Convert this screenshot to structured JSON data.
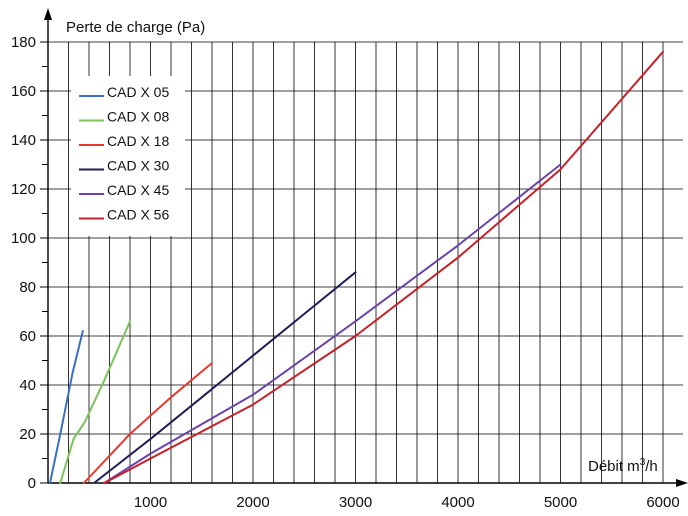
{
  "chart_data": {
    "type": "line",
    "ylabel": "Perte de charge (Pa)",
    "xlabel_prefix": "Débit m",
    "xlabel_sup": "3",
    "xlabel_suffix": "/h",
    "xlim": [
      0,
      6000
    ],
    "ylim": [
      0,
      180
    ],
    "xticks": [
      "1000",
      "2000",
      "3000",
      "4000",
      "5000",
      "6000"
    ],
    "yticks": [
      "0",
      "20",
      "40",
      "60",
      "80",
      "100",
      "120",
      "140",
      "160",
      "180"
    ],
    "grid": true,
    "legend_position": "top-left",
    "series": [
      {
        "name": "CAD X 05",
        "color": "#3b6fc3",
        "points": [
          [
            20,
            0
          ],
          [
            120,
            20
          ],
          [
            240,
            45
          ],
          [
            340,
            62
          ]
        ]
      },
      {
        "name": "CAD X 08",
        "color": "#7cc35a",
        "points": [
          [
            120,
            0
          ],
          [
            250,
            18
          ],
          [
            360,
            25
          ],
          [
            550,
            42
          ],
          [
            800,
            66
          ]
        ]
      },
      {
        "name": "CAD X 18",
        "color": "#e8392e",
        "points": [
          [
            350,
            0
          ],
          [
            800,
            20
          ],
          [
            1200,
            35
          ],
          [
            1600,
            49
          ]
        ]
      },
      {
        "name": "CAD X 30",
        "color": "#1e1e5a",
        "points": [
          [
            450,
            0
          ],
          [
            1000,
            18
          ],
          [
            1500,
            35
          ],
          [
            2000,
            52
          ],
          [
            2500,
            69
          ],
          [
            3000,
            86
          ]
        ]
      },
      {
        "name": "CAD X 45",
        "color": "#6a44a8",
        "points": [
          [
            550,
            0
          ],
          [
            1000,
            12
          ],
          [
            2000,
            36
          ],
          [
            3000,
            66
          ],
          [
            4000,
            97
          ],
          [
            5000,
            130
          ]
        ]
      },
      {
        "name": "CAD X 56",
        "color": "#c8202a",
        "points": [
          [
            550,
            0
          ],
          [
            1000,
            10
          ],
          [
            2000,
            32
          ],
          [
            3000,
            60
          ],
          [
            4000,
            92
          ],
          [
            5000,
            128
          ],
          [
            6000,
            176
          ]
        ]
      }
    ]
  }
}
